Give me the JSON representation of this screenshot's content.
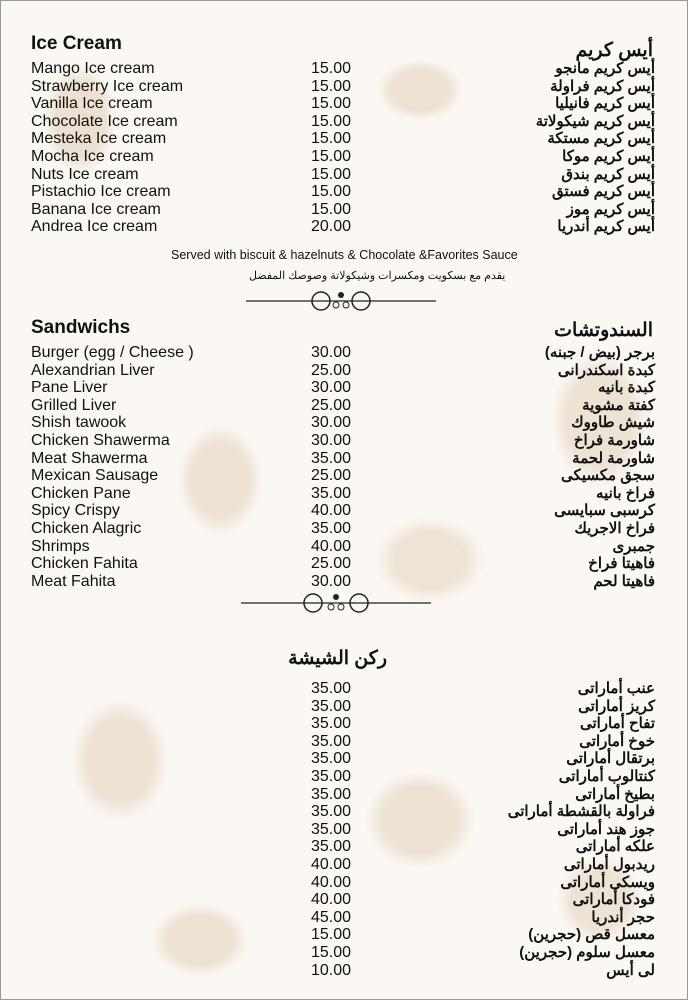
{
  "ice_cream": {
    "title": "Ice Cream",
    "title_ar": "أيس كريم",
    "items": [
      {
        "en": "Mango Ice cream",
        "price": "15.00",
        "ar": "أيس كريم مانجو"
      },
      {
        "en": "Strawberry Ice cream",
        "price": "15.00",
        "ar": "أيس كريم فراولة"
      },
      {
        "en": "Vanilla Ice cream",
        "price": "15.00",
        "ar": "أيس كريم فانيليا"
      },
      {
        "en": "Chocolate Ice cream",
        "price": "15.00",
        "ar": "أيس كريم شيكولاتة"
      },
      {
        "en": "Mesteka Ice cream",
        "price": "15.00",
        "ar": "أيس كريم مستكة"
      },
      {
        "en": "Mocha Ice cream",
        "price": "15.00",
        "ar": "أيس كريم موكا"
      },
      {
        "en": "Nuts Ice cream",
        "price": "15.00",
        "ar": "أيس كريم بندق"
      },
      {
        "en": "Pistachio Ice cream",
        "price": "15.00",
        "ar": "أيس كريم فستق"
      },
      {
        "en": "Banana Ice cream",
        "price": "15.00",
        "ar": "أيس كريم موز"
      },
      {
        "en": "Andrea Ice cream",
        "price": "20.00",
        "ar": "أيس كريم أندريا"
      }
    ],
    "note_en": "Served with biscuit & hazelnuts & Chocolate &Favorites Sauce",
    "note_ar": "يقدم مع بسكويت ومكسرات وشيكولاتة وصوصك المفضل"
  },
  "sandwiches": {
    "title": "Sandwichs",
    "title_ar": "السندوتشات",
    "items": [
      {
        "en": "Burger (egg / Cheese )",
        "price": "30.00",
        "ar": "برجر (بيض / جبنه)"
      },
      {
        "en": "Alexandrian Liver",
        "price": "25.00",
        "ar": "كبدة اسكندرانى"
      },
      {
        "en": "Pane Liver",
        "price": "30.00",
        "ar": "كبدة بانيه"
      },
      {
        "en": "Grilled Liver",
        "price": "25.00",
        "ar": "كفتة مشوية"
      },
      {
        "en": "Shish tawook",
        "price": "30.00",
        "ar": "شيش طاووك"
      },
      {
        "en": "Chicken Shawerma",
        "price": "30.00",
        "ar": "شاورمة فراخ"
      },
      {
        "en": "Meat Shawerma",
        "price": "35.00",
        "ar": "شاورمة لحمة"
      },
      {
        "en": "Mexican Sausage",
        "price": "25.00",
        "ar": "سجق مكسيكى"
      },
      {
        "en": "Chicken Pane",
        "price": "35.00",
        "ar": "فراخ بانيه"
      },
      {
        "en": "Spicy Crispy",
        "price": "40.00",
        "ar": "كرسبى سبايسى"
      },
      {
        "en": "Chicken Alagric",
        "price": "35.00",
        "ar": "فراخ الاجريك"
      },
      {
        "en": "Shrimps",
        "price": "40.00",
        "ar": "جمبرى"
      },
      {
        "en": "Chicken Fahita",
        "price": "25.00",
        "ar": "فاهيتا فراخ"
      },
      {
        "en": "Meat Fahita",
        "price": "30.00",
        "ar": "فاهيتا لحم"
      }
    ]
  },
  "shisha": {
    "title_ar": "ركن الشيشة",
    "items": [
      {
        "price": "35.00",
        "ar": "عنب أماراتى"
      },
      {
        "price": "35.00",
        "ar": "كريز أماراتى"
      },
      {
        "price": "35.00",
        "ar": "تفاح أماراتى"
      },
      {
        "price": "35.00",
        "ar": "خوخ أماراتى"
      },
      {
        "price": "35.00",
        "ar": "برتقال أماراتى"
      },
      {
        "price": "35.00",
        "ar": "كنتالوب أماراتى"
      },
      {
        "price": "35.00",
        "ar": "بطيخ أماراتى"
      },
      {
        "price": "35.00",
        "ar": "فراولة بالقشطة أماراتى"
      },
      {
        "price": "35.00",
        "ar": "جوز هند أماراتى"
      },
      {
        "price": "35.00",
        "ar": "علكه أماراتى"
      },
      {
        "price": "40.00",
        "ar": "ريدبول أماراتى"
      },
      {
        "price": "40.00",
        "ar": "ويسكى أماراتى"
      },
      {
        "price": "40.00",
        "ar": "فودكا أماراتى"
      },
      {
        "price": "45.00",
        "ar": "حجر أندريا"
      },
      {
        "price": "15.00",
        "ar": "معسل قص (حجرين)"
      },
      {
        "price": "15.00",
        "ar": "معسل سلوم (حجرين)"
      },
      {
        "price": "10.00",
        "ar": "لى أيس"
      }
    ]
  },
  "colors": {
    "background": "#fbf8f3",
    "damask": "#decdb4",
    "text": "#111111"
  }
}
